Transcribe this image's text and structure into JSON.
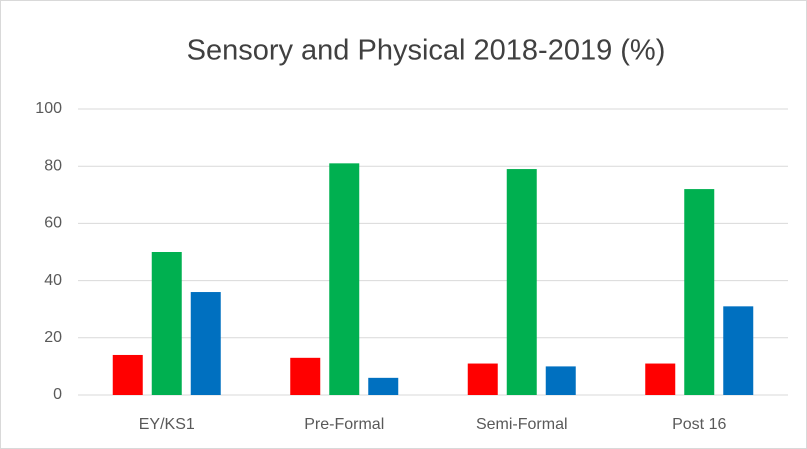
{
  "chart_data": {
    "type": "bar",
    "title": "Sensory and Physical 2018-2019 (%)",
    "categories": [
      "EY/KS1",
      "Pre-Formal",
      "Semi-Formal",
      "Post 16"
    ],
    "series": [
      {
        "color": "#ff0000",
        "values": [
          14,
          13,
          11,
          11
        ]
      },
      {
        "color": "#00b050",
        "values": [
          50,
          81,
          79,
          72
        ]
      },
      {
        "color": "#0070c0",
        "values": [
          36,
          6,
          10,
          31
        ]
      }
    ],
    "ylim": [
      0,
      100
    ],
    "yticks": [
      0,
      20,
      40,
      60,
      80,
      100
    ],
    "grid": true
  }
}
